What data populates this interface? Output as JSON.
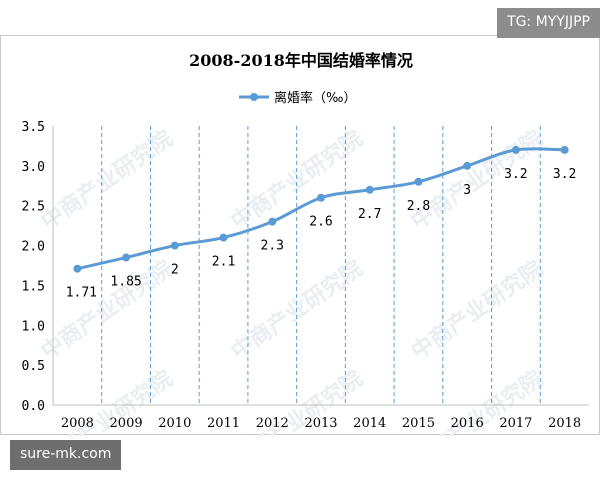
{
  "tags": {
    "top_right": "TG: MYYJJPP",
    "bottom_left": "sure-mk.com"
  },
  "watermark": "中商产业研究院",
  "chart_data": {
    "type": "line",
    "title": "2008-2018年中国结婚率情况",
    "legend_position": "top-center",
    "categories": [
      "2008",
      "2009",
      "2010",
      "2011",
      "2012",
      "2013",
      "2014",
      "2015",
      "2016",
      "2017",
      "2018"
    ],
    "series": [
      {
        "name": "离婚率（‰）",
        "values": [
          1.71,
          1.85,
          2,
          2.1,
          2.3,
          2.6,
          2.7,
          2.8,
          3,
          3.2,
          3.2
        ],
        "labels": [
          "1.71",
          "1.85",
          "2",
          "2.1",
          "2.3",
          "2.6",
          "2.7",
          "2.8",
          "3",
          "3.2",
          "3.2"
        ]
      }
    ],
    "y_ticks": [
      "0.0",
      "0.5",
      "1.0",
      "1.5",
      "2.0",
      "2.5",
      "3.0",
      "3.5"
    ],
    "ylim": [
      0,
      3.5
    ],
    "grid": "vertical-dashed",
    "colors": {
      "line": "#5b9bd5",
      "grid": "#5b9bd5",
      "axis": "#bfbfbf",
      "watermark": "#e9eef3"
    }
  }
}
